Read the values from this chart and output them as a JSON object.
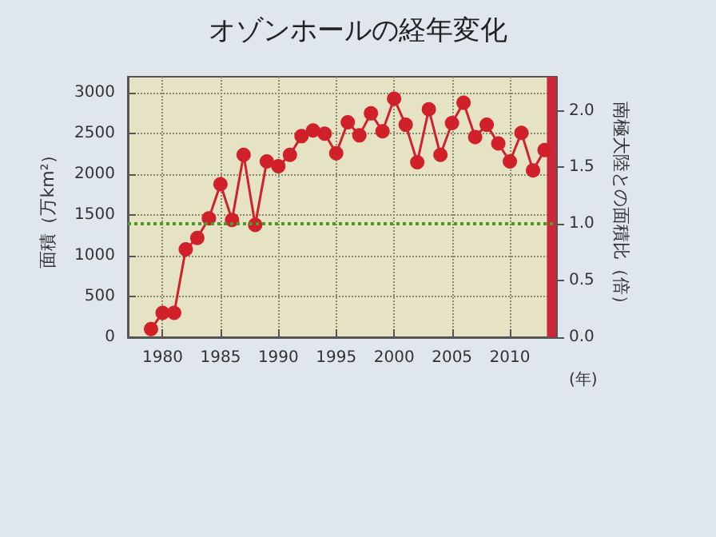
{
  "chart_data": {
    "type": "line",
    "title": "オゾンホールの経年変化",
    "xlabel": "(年)",
    "ylabel": "面積（万km²）",
    "y2label": "南極大陸との面積比（倍）",
    "x": [
      1979,
      1980,
      1981,
      1982,
      1983,
      1984,
      1985,
      1986,
      1987,
      1988,
      1989,
      1990,
      1991,
      1992,
      1993,
      1994,
      1995,
      1996,
      1997,
      1998,
      1999,
      2000,
      2001,
      2002,
      2003,
      2004,
      2005,
      2006,
      2007,
      2008,
      2009,
      2010,
      2011,
      2012,
      2013
    ],
    "series": [
      {
        "color": "#d0202a",
        "values": [
          100,
          300,
          300,
          1080,
          1220,
          1460,
          1880,
          1440,
          2240,
          1380,
          2160,
          2100,
          2240,
          2470,
          2540,
          2500,
          2260,
          2640,
          2480,
          2750,
          2530,
          2930,
          2610,
          2150,
          2800,
          2240,
          2630,
          2880,
          2460,
          2610,
          2380,
          2160,
          2510,
          2050,
          2300
        ]
      }
    ],
    "xlim": [
      1977,
      2014
    ],
    "xticks": [
      1980,
      1985,
      1990,
      1995,
      2000,
      2005,
      2010
    ],
    "ylim": [
      0,
      3200
    ],
    "yticks": [
      0,
      500,
      1000,
      1500,
      2000,
      2500,
      3000
    ],
    "y2lim": [
      0,
      2.3
    ],
    "y2ticks": [
      {
        "value": 0,
        "label": "0.0"
      },
      {
        "value": 0.5,
        "label": "0.5"
      },
      {
        "value": 1,
        "label": "1.0"
      },
      {
        "value": 1.5,
        "label": "1.5"
      },
      {
        "value": 2,
        "label": "2.0"
      }
    ],
    "ref_lines": [
      {
        "axis": "y",
        "value": 1400,
        "color": "#4f9a2a",
        "line_style": "dotted"
      }
    ],
    "bands": [
      {
        "axis": "x",
        "from": 2013.2,
        "to": 2014,
        "color": "#c8283a"
      }
    ],
    "grid": true,
    "marker": "circle",
    "line_style": "solid"
  }
}
